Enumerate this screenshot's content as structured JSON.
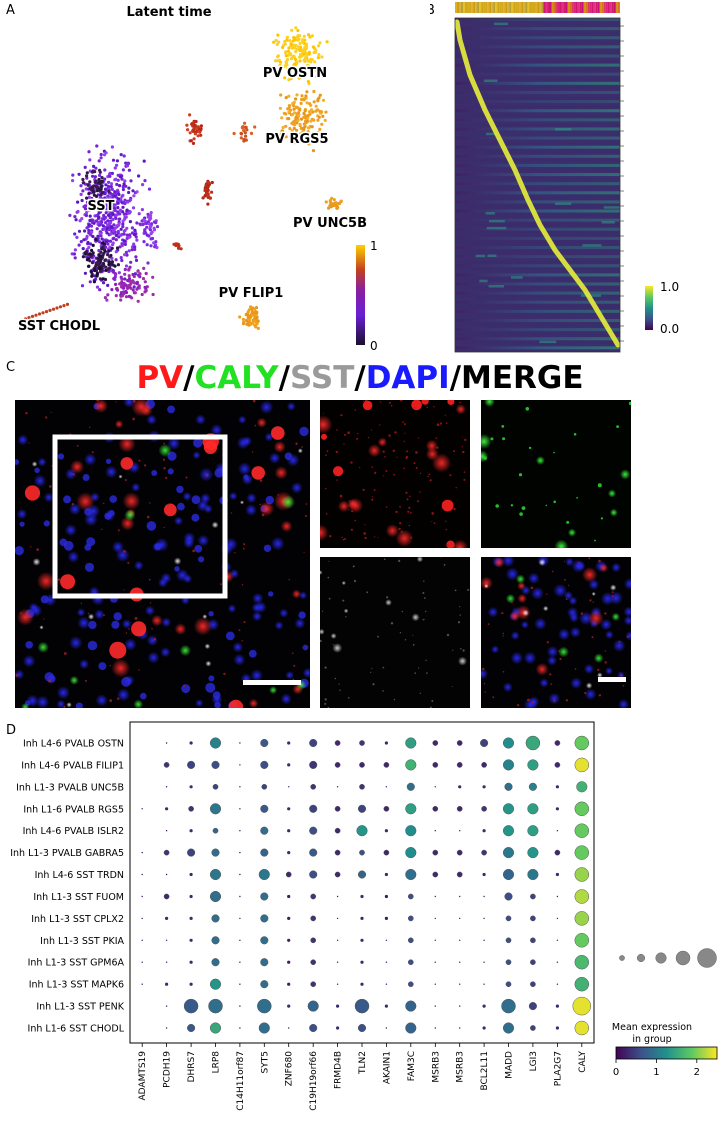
{
  "panels": {
    "a": "A",
    "b": "B",
    "c": "C",
    "d": "D"
  },
  "panelA": {
    "title": "Latent time",
    "colorbar": {
      "max": "1",
      "min": "0"
    },
    "labels": [
      {
        "text": "PV OSTN",
        "x": 295,
        "y": 77
      },
      {
        "text": "PV RGS5",
        "x": 297,
        "y": 143
      },
      {
        "text": "SST",
        "x": 101,
        "y": 210
      },
      {
        "text": "PV UNC5B",
        "x": 330,
        "y": 227
      },
      {
        "text": "PV FLIP1",
        "x": 251,
        "y": 297
      },
      {
        "text": "SST CHODL",
        "x": 59,
        "y": 330
      }
    ]
  },
  "panelB": {
    "colorbar": {
      "max": "1.0",
      "min": "0.0"
    }
  },
  "panelC": {
    "title_parts": [
      {
        "text": "PV",
        "color": "#ff1a1a"
      },
      {
        "text": "/",
        "color": "#000000"
      },
      {
        "text": "CALY",
        "color": "#22e022"
      },
      {
        "text": "/",
        "color": "#000000"
      },
      {
        "text": "SST",
        "color": "#9a9a9a"
      },
      {
        "text": "/",
        "color": "#000000"
      },
      {
        "text": "DAPI",
        "color": "#1a1aff"
      },
      {
        "text": "/MERGE",
        "color": "#000000"
      }
    ]
  },
  "panelD": {
    "legend": {
      "title_line1": "Mean expression",
      "title_line2": "in group",
      "ticks": [
        "0",
        "1",
        "2"
      ]
    }
  },
  "chart_data": [
    {
      "type": "heatmap",
      "panel": "B",
      "description_colorbar_range": [
        0.0,
        1.0
      ]
    },
    {
      "type": "scatter",
      "panel": "D",
      "genes": [
        "ADAMTS19",
        "PCDH19",
        "DHRS7",
        "LRP8",
        "C14H11orf87",
        "SYT5",
        "ZNF680",
        "C19H19orf66",
        "FRMD4B",
        "TLN2",
        "AKAIN1",
        "FAM3C",
        "MSRB3",
        "MSRB3",
        "BCL2L11",
        "MADD",
        "LGI3",
        "PLA2G7",
        "CALY"
      ],
      "groups": [
        "Inh L4-6 PVALB OSTN",
        "Inh L4-6 PVALB FILIP1",
        "Inh L1-3 PVALB UNC5B",
        "Inh L1-6 PVALB RGS5",
        "Inh L4-6 PVALB ISLR2",
        "Inh L1-3 PVALB GABRA5",
        "Inh L4-6 SST TRDN",
        "Inh L1-3 SST FUOM",
        "Inh L1-3 SST CPLX2",
        "Inh L1-3 SST PKIA",
        "Inh L1-3 SST GPM6A",
        "Inh L1-3 SST MAPK6",
        "Inh L1-3 SST PENK",
        "Inh L1-6 SST CHODL"
      ],
      "size_levels": [
        0,
        1,
        2,
        3,
        4,
        5,
        6,
        7
      ],
      "sizes": [
        [
          0,
          1,
          2,
          5,
          1,
          4,
          2,
          4,
          3,
          3,
          2,
          5,
          3,
          3,
          4,
          5,
          6,
          3,
          6
        ],
        [
          0,
          3,
          4,
          4,
          1,
          4,
          2,
          4,
          3,
          3,
          3,
          5,
          3,
          3,
          3,
          5,
          5,
          3,
          6
        ],
        [
          0,
          1,
          2,
          3,
          1,
          3,
          1,
          3,
          1,
          3,
          1,
          4,
          1,
          2,
          2,
          4,
          4,
          2,
          5
        ],
        [
          1,
          2,
          3,
          5,
          1,
          4,
          2,
          4,
          3,
          4,
          3,
          5,
          3,
          3,
          3,
          5,
          5,
          2,
          6
        ],
        [
          0,
          1,
          2,
          3,
          1,
          4,
          2,
          4,
          3,
          5,
          2,
          5,
          1,
          1,
          2,
          5,
          5,
          1,
          6
        ],
        [
          1,
          3,
          4,
          4,
          1,
          4,
          2,
          4,
          3,
          3,
          3,
          5,
          3,
          3,
          3,
          5,
          5,
          3,
          6
        ],
        [
          1,
          1,
          2,
          5,
          1,
          5,
          3,
          4,
          3,
          4,
          2,
          5,
          3,
          3,
          2,
          5,
          5,
          2,
          6
        ],
        [
          1,
          3,
          2,
          5,
          1,
          4,
          2,
          3,
          1,
          2,
          2,
          3,
          1,
          1,
          1,
          4,
          3,
          1,
          6
        ],
        [
          1,
          2,
          2,
          4,
          1,
          4,
          2,
          3,
          1,
          2,
          2,
          3,
          1,
          1,
          1,
          3,
          3,
          1,
          6
        ],
        [
          1,
          1,
          2,
          4,
          1,
          4,
          2,
          3,
          1,
          2,
          1,
          3,
          1,
          1,
          1,
          3,
          3,
          1,
          6
        ],
        [
          1,
          1,
          2,
          4,
          1,
          4,
          2,
          3,
          1,
          2,
          1,
          3,
          1,
          1,
          1,
          3,
          3,
          1,
          6
        ],
        [
          1,
          2,
          2,
          5,
          1,
          4,
          2,
          3,
          1,
          2,
          1,
          3,
          1,
          1,
          1,
          3,
          3,
          1,
          6
        ],
        [
          0,
          1,
          6,
          6,
          1,
          6,
          2,
          5,
          2,
          6,
          2,
          5,
          1,
          1,
          2,
          6,
          4,
          2,
          7
        ],
        [
          0,
          1,
          4,
          5,
          1,
          5,
          1,
          4,
          2,
          4,
          1,
          5,
          1,
          1,
          2,
          5,
          3,
          2,
          6
        ]
      ],
      "values": [
        [
          0.1,
          0.1,
          0.3,
          1.1,
          0.1,
          0.7,
          0.3,
          0.5,
          0.3,
          0.4,
          0.3,
          1.4,
          0.3,
          0.3,
          0.5,
          1.2,
          1.5,
          0.3,
          1.9
        ],
        [
          0.1,
          0.4,
          0.5,
          0.6,
          0.1,
          0.6,
          0.3,
          0.4,
          0.3,
          0.3,
          0.3,
          1.6,
          0.3,
          0.3,
          0.3,
          1.1,
          1.4,
          0.3,
          2.4
        ],
        [
          0.1,
          0.1,
          0.3,
          0.5,
          0.1,
          0.5,
          0.2,
          0.4,
          0.2,
          0.4,
          0.2,
          0.9,
          0.2,
          0.3,
          0.3,
          0.9,
          1.1,
          0.3,
          1.6
        ],
        [
          0.1,
          0.3,
          0.4,
          1.0,
          0.1,
          0.7,
          0.3,
          0.5,
          0.3,
          0.5,
          0.3,
          1.4,
          0.3,
          0.3,
          0.4,
          1.3,
          1.4,
          0.3,
          1.9
        ],
        [
          0.1,
          0.1,
          0.3,
          0.8,
          0.1,
          0.9,
          0.3,
          0.6,
          0.3,
          1.3,
          0.3,
          1.2,
          0.2,
          0.2,
          0.3,
          1.3,
          1.4,
          0.2,
          1.9
        ],
        [
          0.1,
          0.4,
          0.5,
          0.9,
          0.1,
          0.8,
          0.3,
          0.7,
          0.3,
          0.6,
          0.3,
          1.2,
          0.3,
          0.3,
          0.4,
          1.0,
          1.3,
          0.3,
          1.9
        ],
        [
          0.1,
          0.1,
          0.3,
          1.0,
          0.1,
          1.0,
          0.3,
          0.6,
          0.3,
          0.8,
          0.3,
          0.9,
          0.3,
          0.3,
          0.3,
          0.8,
          1.0,
          0.3,
          2.1
        ],
        [
          0.1,
          0.3,
          0.3,
          0.9,
          0.1,
          0.9,
          0.2,
          0.4,
          0.2,
          0.3,
          0.2,
          0.6,
          0.2,
          0.2,
          0.2,
          0.6,
          0.5,
          0.2,
          2.2
        ],
        [
          0.1,
          0.3,
          0.3,
          0.9,
          0.1,
          0.9,
          0.2,
          0.4,
          0.2,
          0.3,
          0.2,
          0.6,
          0.2,
          0.2,
          0.2,
          0.6,
          0.5,
          0.2,
          2.1
        ],
        [
          0.1,
          0.2,
          0.3,
          0.9,
          0.1,
          0.9,
          0.2,
          0.4,
          0.2,
          0.3,
          0.2,
          0.6,
          0.2,
          0.2,
          0.2,
          0.6,
          0.5,
          0.2,
          1.9
        ],
        [
          0.1,
          0.2,
          0.3,
          0.9,
          0.1,
          0.9,
          0.2,
          0.4,
          0.2,
          0.3,
          0.2,
          0.6,
          0.2,
          0.2,
          0.2,
          0.6,
          0.5,
          0.2,
          1.7
        ],
        [
          0.1,
          0.3,
          0.3,
          1.3,
          0.1,
          0.9,
          0.2,
          0.4,
          0.2,
          0.3,
          0.2,
          0.6,
          0.2,
          0.2,
          0.2,
          0.6,
          0.5,
          0.2,
          1.6
        ],
        [
          0.1,
          0.1,
          0.7,
          0.9,
          0.1,
          0.9,
          0.3,
          0.8,
          0.3,
          0.7,
          0.3,
          0.8,
          0.2,
          0.2,
          0.3,
          0.9,
          0.5,
          0.3,
          2.4
        ],
        [
          0.1,
          0.1,
          0.7,
          1.5,
          0.1,
          0.9,
          0.2,
          0.6,
          0.3,
          0.6,
          0.2,
          0.8,
          0.2,
          0.2,
          0.3,
          0.9,
          0.5,
          0.3,
          2.4
        ]
      ],
      "colorbar_range": [
        0,
        2.5
      ]
    }
  ]
}
